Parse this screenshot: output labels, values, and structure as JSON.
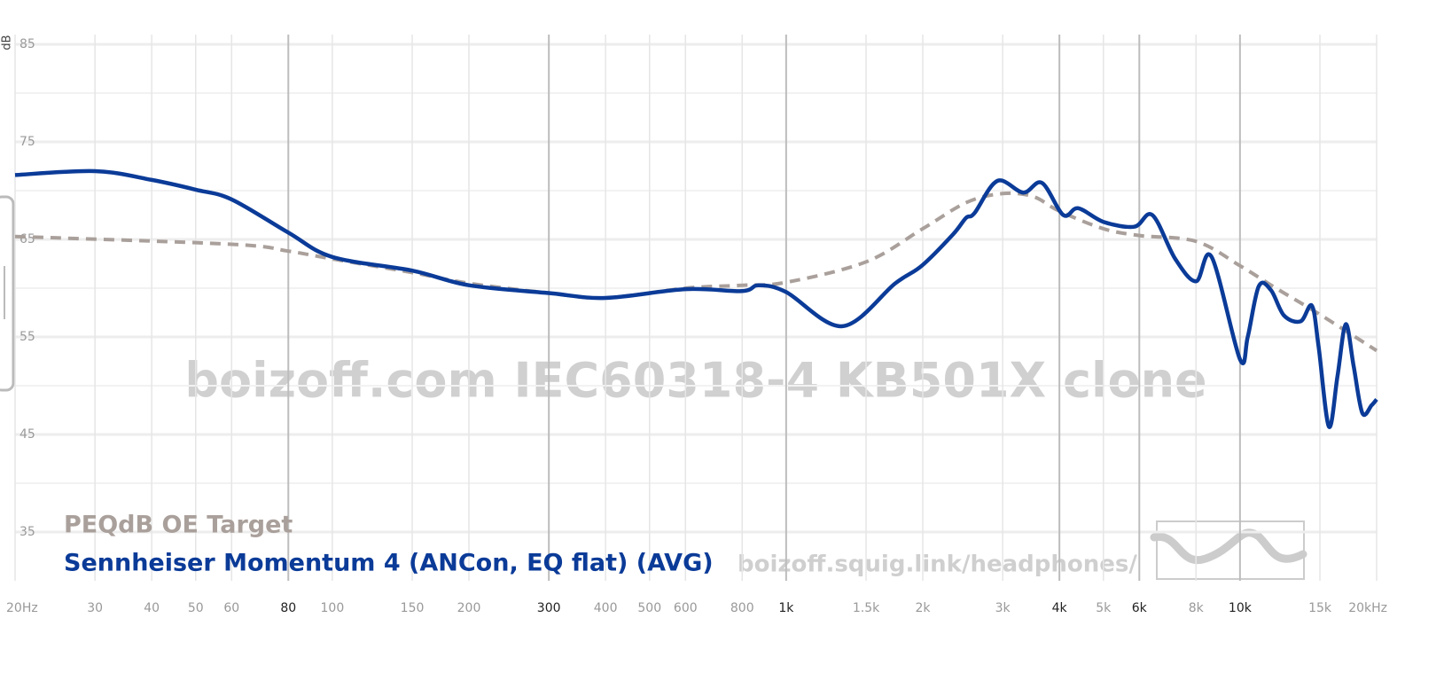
{
  "chart_data": {
    "type": "line",
    "y_label": "dB",
    "watermark": "boizoff.com IEC60318-4 KB501X clone",
    "url": "boizoff.squig.link/headphones/",
    "log_x": true,
    "grid": true,
    "xlim": [
      20,
      20000
    ],
    "ylim": [
      30,
      86
    ],
    "yticks": [
      35,
      45,
      55,
      65,
      75,
      85
    ],
    "yminor": [
      40,
      50,
      60,
      70,
      80
    ],
    "xticks": [
      {
        "value": 20,
        "label": "20Hz"
      },
      30,
      40,
      50,
      60,
      80,
      100,
      150,
      200,
      300,
      400,
      500,
      600,
      800,
      {
        "value": 1000,
        "label": "1k"
      },
      {
        "value": 1500,
        "label": "1.5k"
      },
      {
        "value": 2000,
        "label": "2k"
      },
      {
        "value": 3000,
        "label": "3k"
      },
      {
        "value": 4000,
        "label": "4k"
      },
      {
        "value": 5000,
        "label": "5k"
      },
      {
        "value": 6000,
        "label": "6k"
      },
      {
        "value": 8000,
        "label": "8k"
      },
      {
        "value": 10000,
        "label": "10k"
      },
      {
        "value": 15000,
        "label": "15k"
      },
      {
        "value": 20000,
        "label": "20kHz"
      }
    ],
    "xticks_emphasis": [
      80,
      300,
      1000,
      4000,
      6000,
      10000
    ],
    "series": [
      {
        "name": "PEQdB OE Target",
        "color": "#aaa09b",
        "dashed": true,
        "x": [
          20,
          60,
          80,
          100,
          150,
          200,
          300,
          400,
          600,
          800,
          1000,
          1500,
          2000,
          2500,
          3000,
          3500,
          4000,
          5000,
          6000,
          8000,
          10000,
          12000,
          15000,
          20000
        ],
        "values": [
          65.3,
          64.5,
          63.8,
          63,
          61.6,
          60.5,
          59.5,
          59,
          60,
          60.3,
          60.6,
          62.7,
          66.1,
          68.8,
          69.7,
          69.4,
          67.9,
          66.1,
          65.4,
          64.8,
          62.3,
          60,
          57.3,
          53.6
        ]
      },
      {
        "name": "Sennheiser Momentum 4 (ANCon, EQ flat) (AVG)",
        "color": "#0b3b98",
        "dashed": false,
        "x": [
          20,
          30,
          40,
          50,
          60,
          80,
          100,
          150,
          200,
          300,
          400,
          600,
          800,
          870,
          1000,
          1330,
          1740,
          1990,
          2330,
          2490,
          2600,
          2920,
          3330,
          3660,
          4080,
          4400,
          5000,
          5850,
          6410,
          7200,
          8000,
          8660,
          10000,
          10400,
          11000,
          11700,
          12500,
          13600,
          14400,
          14900,
          15700,
          16400,
          17100,
          17800,
          18600,
          19500,
          20000
        ],
        "values": [
          71.6,
          72,
          71.1,
          70.1,
          69.1,
          65.7,
          63.2,
          61.8,
          60.3,
          59.5,
          59,
          59.9,
          59.7,
          60.3,
          59.6,
          56.1,
          60.5,
          62.3,
          65.5,
          67.2,
          67.7,
          71,
          69.8,
          70.8,
          67.5,
          68.2,
          66.8,
          66.3,
          67.5,
          63,
          60.7,
          63.2,
          52.7,
          55,
          60.2,
          59.8,
          57.2,
          56.6,
          58.2,
          54,
          45.8,
          51,
          56.3,
          52,
          47.2,
          48,
          48.6
        ]
      }
    ]
  }
}
